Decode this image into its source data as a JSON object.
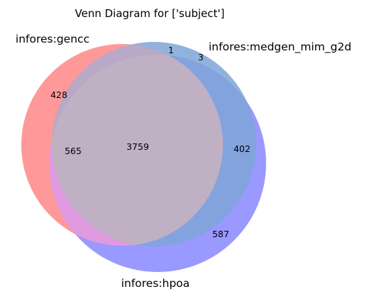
{
  "figure": {
    "title": "Venn Diagram for ['subject']"
  },
  "sets": [
    {
      "label": "infores:gencc",
      "color": "#ff7f7f"
    },
    {
      "label": "infores:medgen_mim_g2d",
      "color": "#7fa5d8"
    },
    {
      "label": "infores:hpoa",
      "color": "#8080ff"
    }
  ],
  "regions": {
    "gencc_only": "428",
    "medgen_only": "3",
    "gencc_and_medgen_only": "1",
    "gencc_and_hpoa_only": "565",
    "all_three": "3759",
    "medgen_and_hpoa_only": "402",
    "hpoa_only": "587"
  },
  "overlap_colors": {
    "gencc_hpoa": "#e09ae0",
    "all_three": "#c0b0c4"
  }
}
